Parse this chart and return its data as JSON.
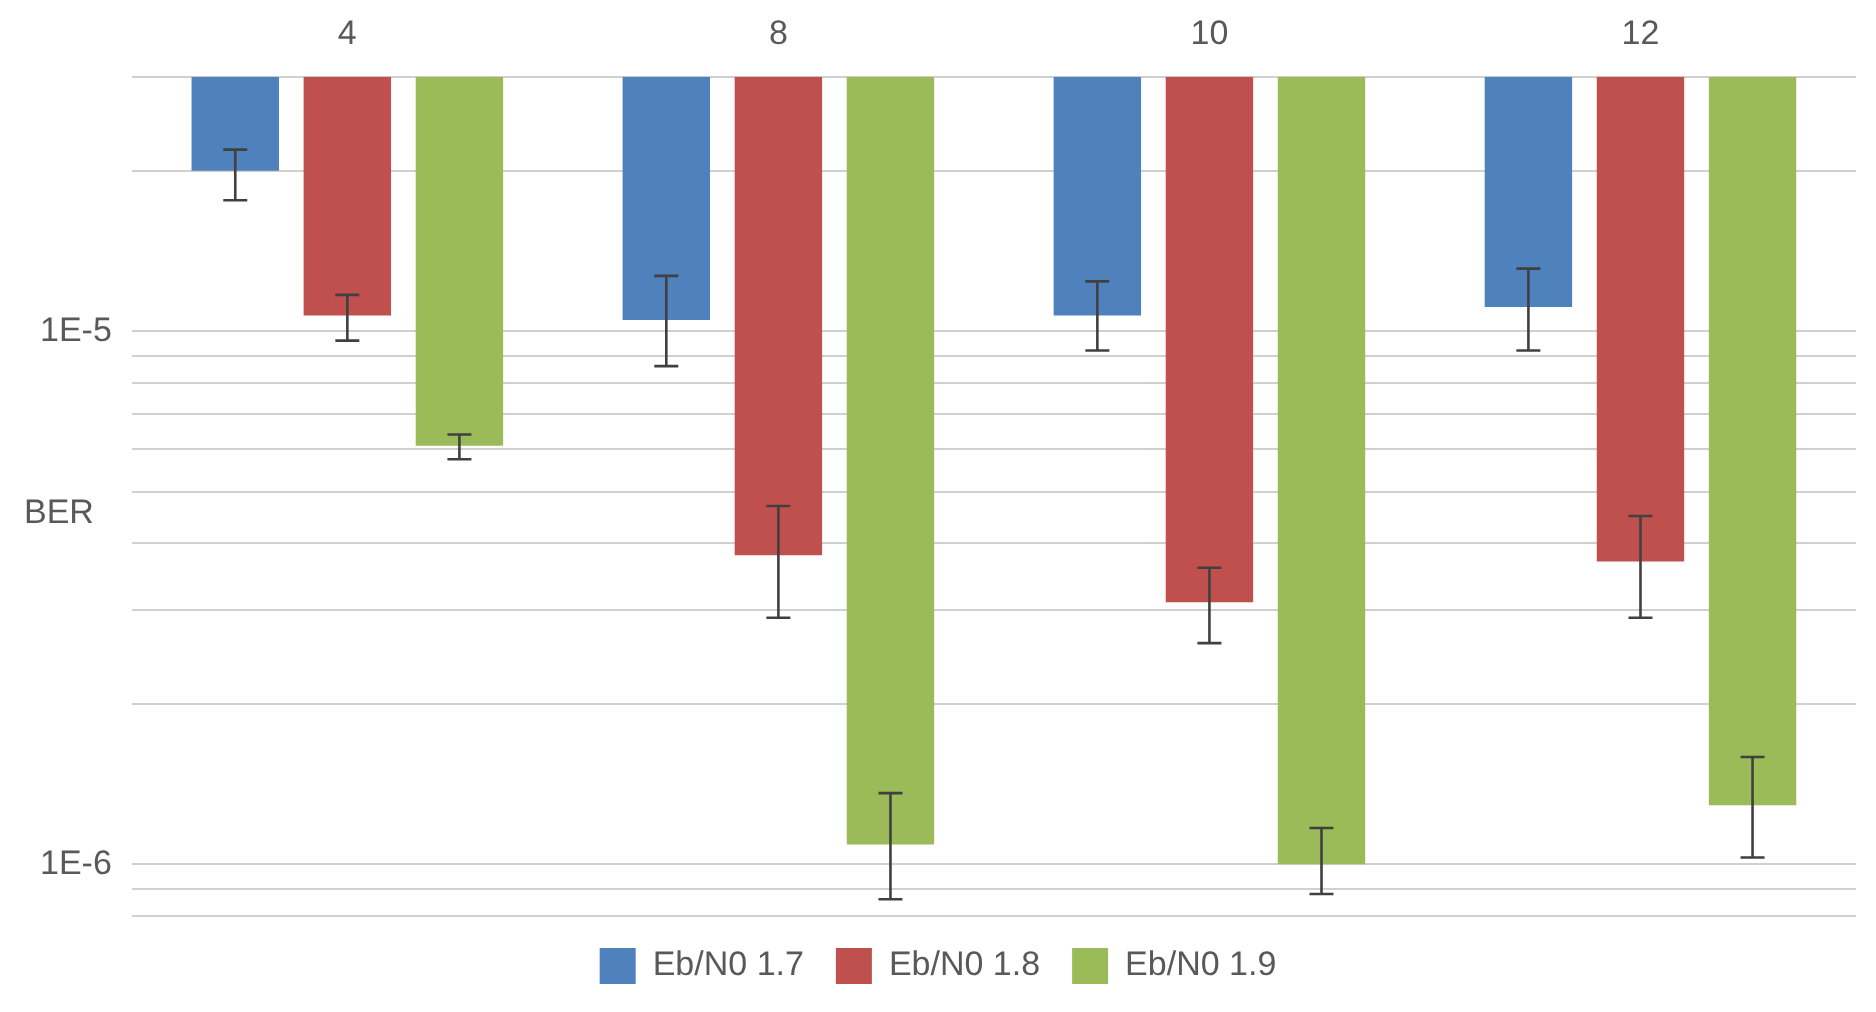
{
  "chart_data": {
    "type": "bar",
    "ylabel": "BER",
    "categories": [
      "4",
      "8",
      "10",
      "12"
    ],
    "series": [
      {
        "name": "Eb/N0 1.7",
        "color": "#4f81bd",
        "base": [
          3e-05,
          3e-05,
          3e-05,
          3e-05
        ],
        "values": [
          -1e-05,
          -1.95e-05,
          -1.93e-05,
          -1.89e-05
        ],
        "errors": [
          [
            1.76e-05,
            2.19e-05
          ],
          [
            8.6e-06,
            1.27e-05
          ],
          [
            9.2e-06,
            1.24e-05
          ],
          [
            9.2e-06,
            1.31e-05
          ]
        ]
      },
      {
        "name": "Eb/N0 1.8",
        "color": "#c0504d",
        "base": [
          3e-05,
          3e-05,
          3e-05,
          3e-05
        ],
        "values": [
          -1.93e-05,
          -2.62e-05,
          -2.69e-05,
          -2.63e-05
        ],
        "errors": [
          [
            9.6e-06,
            1.17e-05
          ],
          [
            2.9e-06,
            4.7e-06
          ],
          [
            2.6e-06,
            3.6e-06
          ],
          [
            2.9e-06,
            4.5e-06
          ]
        ]
      },
      {
        "name": "Eb/N0 1.9",
        "color": "#9bbb59",
        "base": [
          3e-05,
          3e-05,
          3e-05,
          3e-05
        ],
        "values": [
          -2.39e-05,
          -2.891e-05,
          -2.9e-05,
          -2.871e-05
        ],
        "errors": [
          [
            5.75e-06,
            6.4e-06
          ],
          [
            8.6e-07,
            1.36e-06
          ],
          [
            8.8e-07,
            1.17e-06
          ],
          [
            1.03e-06,
            1.59e-06
          ]
        ]
      }
    ],
    "log": "y",
    "ylim": [
      8e-07,
      3e-05
    ],
    "yticks": [
      {
        "value": 8e-07,
        "label": null
      },
      {
        "value": 9e-07,
        "label": null
      },
      {
        "value": 1e-06,
        "label": "1E-6"
      },
      {
        "value": 2e-06,
        "label": null
      },
      {
        "value": 3e-06,
        "label": null
      },
      {
        "value": 4e-06,
        "label": null
      },
      {
        "value": 5e-06,
        "label": null
      },
      {
        "value": 6e-06,
        "label": null
      },
      {
        "value": 7e-06,
        "label": null
      },
      {
        "value": 8e-06,
        "label": null
      },
      {
        "value": 9e-06,
        "label": null
      },
      {
        "value": 1e-05,
        "label": "1E-5"
      },
      {
        "value": 2e-05,
        "label": null
      },
      {
        "value": 3e-05,
        "label": null
      }
    ],
    "grid": "y",
    "legend": "bottom"
  }
}
